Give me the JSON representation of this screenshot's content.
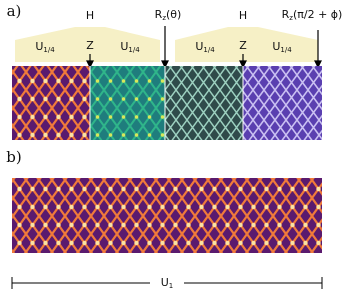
{
  "panel_labels": [
    "a)",
    "b)"
  ],
  "gates": {
    "hadamard_labels": [
      "H",
      "H"
    ],
    "u_quarter": [
      {
        "base": "U",
        "sub": "1/4"
      },
      {
        "base": "U",
        "sub": "1/4"
      },
      {
        "base": "U",
        "sub": "1/4"
      },
      {
        "base": "U",
        "sub": "1/4"
      }
    ],
    "z_labels": [
      "Z",
      "Z"
    ],
    "rotations": [
      {
        "base": "R",
        "sub": "z",
        "arg": "(θ)"
      },
      {
        "base": "R",
        "sub": "z",
        "arg": "(π/2 + ϕ)"
      }
    ]
  },
  "scale_bar": {
    "base": "U",
    "sub": "1"
  }
}
